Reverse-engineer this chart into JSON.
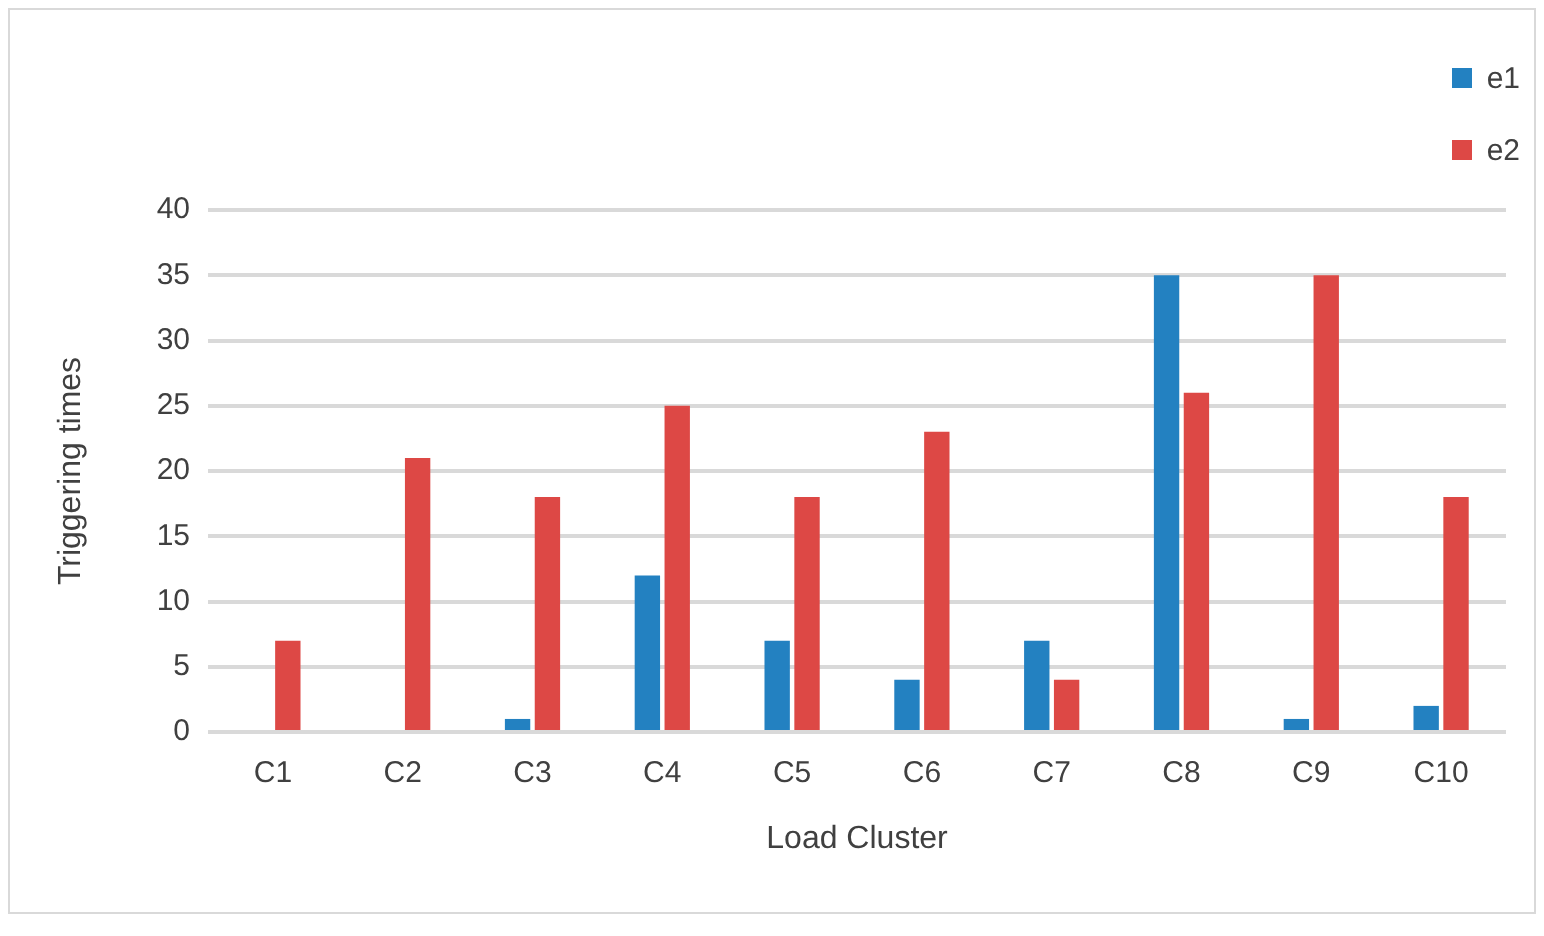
{
  "chart_data": {
    "type": "bar",
    "xlabel": "Load Cluster",
    "ylabel": "Triggering times",
    "categories": [
      "C1",
      "C2",
      "C3",
      "C4",
      "C5",
      "C6",
      "C7",
      "C8",
      "C9",
      "C10"
    ],
    "series": [
      {
        "name": "e1",
        "color": "#2381c1",
        "values": [
          0,
          0,
          1,
          12,
          7,
          4,
          7,
          35,
          1,
          2
        ]
      },
      {
        "name": "e2",
        "color": "#dd4845",
        "values": [
          7,
          21,
          18,
          25,
          18,
          23,
          4,
          26,
          35,
          18
        ]
      }
    ],
    "ylim": [
      0,
      40
    ],
    "yticks": [
      0,
      5,
      10,
      15,
      20,
      25,
      30,
      35,
      40
    ],
    "grid": "y",
    "legend": "top right"
  }
}
